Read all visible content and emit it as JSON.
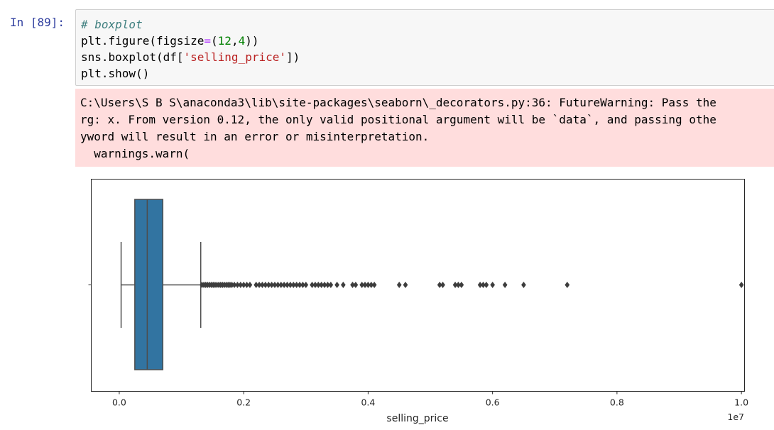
{
  "cell": {
    "prompt": "In [89]:",
    "code": {
      "comment": "# boxplot",
      "line2_a": "plt.figure(figsize",
      "line2_eq": "=",
      "line2_b": "(",
      "line2_n1": "12",
      "line2_c": ",",
      "line2_n2": "4",
      "line2_d": "))",
      "line3_a": "sns.boxplot(df[",
      "line3_str": "'selling_price'",
      "line3_b": "])",
      "line4": "plt.show()"
    }
  },
  "warning": {
    "lines": [
      "C:\\Users\\S B S\\anaconda3\\lib\\site-packages\\seaborn\\_decorators.py:36: FutureWarning: Pass the",
      "rg: x. From version 0.12, the only valid positional argument will be `data`, and passing othe",
      "yword will result in an error or misinterpretation.",
      "  warnings.warn("
    ]
  },
  "chart_data": {
    "type": "boxplot",
    "xlabel": "selling_price",
    "offset_label": "1e7",
    "xlim": [
      -0.045,
      1.005
    ],
    "xticks": [
      0.0,
      0.2,
      0.4,
      0.6,
      0.8,
      1.0
    ],
    "xtick_labels": [
      "0.0",
      "0.2",
      "0.4",
      "0.6",
      "0.8",
      "1.0"
    ],
    "box": {
      "whisker_low": 0.003,
      "q1": 0.025,
      "median": 0.045,
      "q3": 0.07,
      "whisker_high": 0.131
    },
    "box_color": "#3274a1",
    "outliers": [
      0.133,
      0.136,
      0.139,
      0.142,
      0.145,
      0.148,
      0.151,
      0.154,
      0.157,
      0.16,
      0.163,
      0.166,
      0.169,
      0.172,
      0.175,
      0.178,
      0.181,
      0.185,
      0.19,
      0.195,
      0.2,
      0.205,
      0.21,
      0.22,
      0.225,
      0.23,
      0.235,
      0.24,
      0.245,
      0.25,
      0.255,
      0.26,
      0.265,
      0.27,
      0.275,
      0.28,
      0.285,
      0.29,
      0.295,
      0.3,
      0.31,
      0.315,
      0.32,
      0.325,
      0.33,
      0.335,
      0.34,
      0.35,
      0.36,
      0.375,
      0.38,
      0.39,
      0.395,
      0.4,
      0.405,
      0.41,
      0.45,
      0.46,
      0.515,
      0.52,
      0.54,
      0.545,
      0.55,
      0.58,
      0.585,
      0.59,
      0.6,
      0.62,
      0.65,
      0.72,
      1.0
    ]
  }
}
